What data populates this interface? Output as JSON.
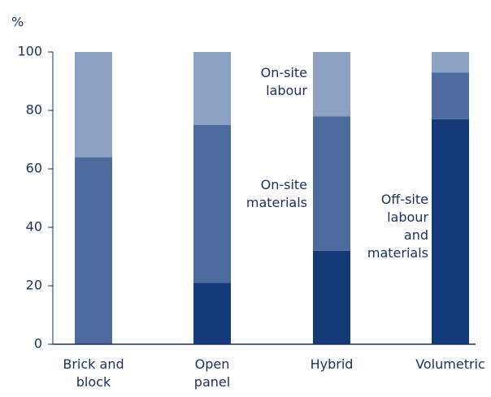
{
  "chart_data": {
    "type": "stacked_bar",
    "y_label": "%",
    "categories": [
      "Brick and block",
      "Open panel",
      "Hybrid",
      "Volumetric"
    ],
    "series": [
      {
        "name": "Off-site labour and materials",
        "color": "#143a7a",
        "values": [
          0,
          21,
          32,
          77
        ]
      },
      {
        "name": "On-site materials",
        "color": "#4d6b9f",
        "values": [
          64,
          54,
          46,
          16
        ]
      },
      {
        "name": "On-site labour",
        "color": "#8da1c2",
        "values": [
          36,
          25,
          22,
          7
        ]
      }
    ],
    "ylim": [
      0,
      100
    ],
    "yticks": [
      0,
      20,
      40,
      60,
      80,
      100
    ],
    "grid": false
  }
}
